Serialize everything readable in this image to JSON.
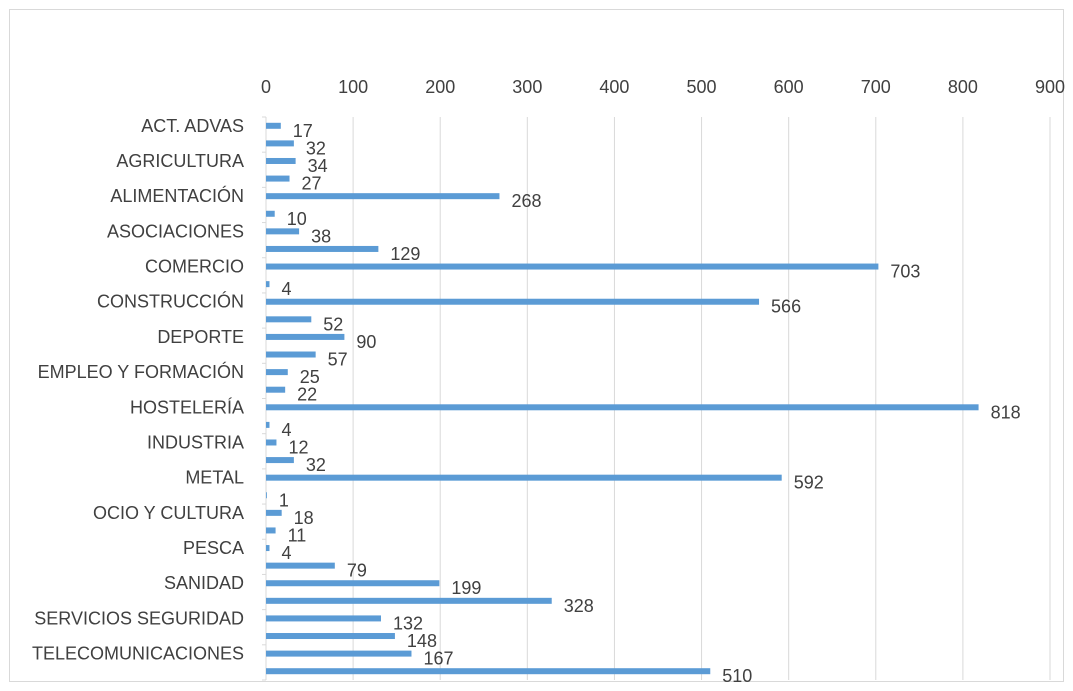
{
  "chart_data": {
    "type": "bar",
    "orientation": "horizontal",
    "title": "",
    "xlabel": "",
    "ylabel": "",
    "xlim": [
      0,
      900
    ],
    "x_ticks": [
      0,
      100,
      200,
      300,
      400,
      500,
      600,
      700,
      800,
      900
    ],
    "grid": "vertical",
    "legend": "none",
    "bar_color": "#5b9bd5",
    "data_labels": true,
    "category_labels_shown": [
      "ACT. ADVAS",
      "AGRICULTURA",
      "ALIMENTACIÓN",
      "ASOCIACIONES",
      "COMERCIO",
      "CONSTRUCCIÓN",
      "DEPORTE",
      "EMPLEO Y FORMACIÓN",
      "HOSTELERÍA",
      "INDUSTRIA",
      "METAL",
      "OCIO Y CULTURA",
      "PESCA",
      "SANIDAD",
      "SERVICIOS SEGURIDAD",
      "TELECOMUNICACIONES"
    ],
    "values": [
      17,
      32,
      34,
      27,
      268,
      10,
      38,
      129,
      703,
      4,
      566,
      52,
      90,
      57,
      25,
      22,
      818,
      4,
      12,
      32,
      592,
      1,
      18,
      11,
      4,
      79,
      199,
      328,
      132,
      148,
      167,
      510
    ]
  }
}
